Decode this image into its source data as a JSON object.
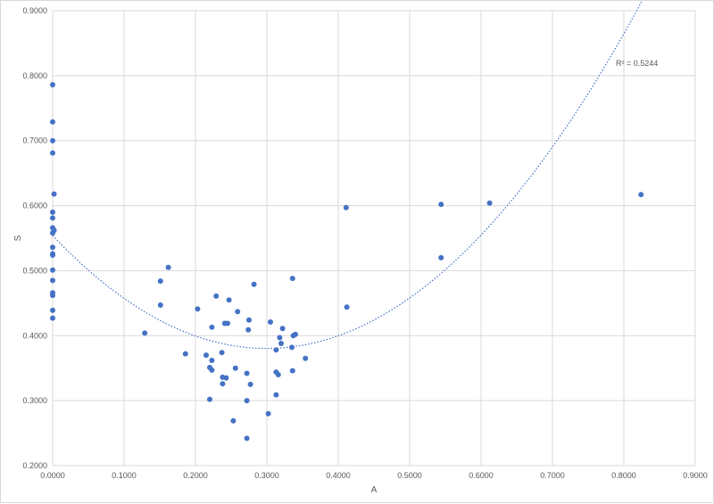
{
  "chart_data": {
    "type": "scatter",
    "xlabel": "A",
    "ylabel": "S",
    "xlim": [
      0,
      0.9
    ],
    "ylim": [
      0.2,
      0.9
    ],
    "grid": true,
    "x_ticks": [
      "0.0000",
      "0.1000",
      "0.2000",
      "0.3000",
      "0.4000",
      "0.5000",
      "0.6000",
      "0.7000",
      "0.8000",
      "0.9000"
    ],
    "y_ticks": [
      "0.2000",
      "0.3000",
      "0.4000",
      "0.5000",
      "0.6000",
      "0.7000",
      "0.8000",
      "0.9000"
    ],
    "x_tick_values": [
      0,
      0.1,
      0.2,
      0.3,
      0.4,
      0.5,
      0.6,
      0.7,
      0.8,
      0.9
    ],
    "y_tick_values": [
      0.2,
      0.3,
      0.4,
      0.5,
      0.6,
      0.7,
      0.8,
      0.9
    ],
    "series_color": "#4472c4",
    "trendline": {
      "type": "polynomial-order-2",
      "style": "dotted",
      "label": "R² = 0.5244",
      "coefficients": [
        0.554,
        -1.159,
        1.934
      ],
      "x_range": [
        0,
        0.85
      ]
    },
    "points": [
      [
        0.0,
        0.786
      ],
      [
        0.0,
        0.729
      ],
      [
        0.0,
        0.7
      ],
      [
        0.0,
        0.681
      ],
      [
        0.002,
        0.618
      ],
      [
        0.0,
        0.59
      ],
      [
        0.0,
        0.581
      ],
      [
        0.0,
        0.566
      ],
      [
        0.002,
        0.562
      ],
      [
        0.0,
        0.558
      ],
      [
        0.0,
        0.536
      ],
      [
        0.0,
        0.526
      ],
      [
        0.0,
        0.524
      ],
      [
        0.0,
        0.501
      ],
      [
        0.0,
        0.485
      ],
      [
        0.0,
        0.466
      ],
      [
        0.0,
        0.462
      ],
      [
        0.0,
        0.439
      ],
      [
        0.0,
        0.427
      ],
      [
        0.129,
        0.404
      ],
      [
        0.151,
        0.484
      ],
      [
        0.151,
        0.447
      ],
      [
        0.162,
        0.505
      ],
      [
        0.186,
        0.372
      ],
      [
        0.203,
        0.441
      ],
      [
        0.215,
        0.37
      ],
      [
        0.22,
        0.351
      ],
      [
        0.22,
        0.302
      ],
      [
        0.223,
        0.413
      ],
      [
        0.223,
        0.347
      ],
      [
        0.223,
        0.362
      ],
      [
        0.229,
        0.461
      ],
      [
        0.237,
        0.374
      ],
      [
        0.238,
        0.336
      ],
      [
        0.238,
        0.326
      ],
      [
        0.241,
        0.419
      ],
      [
        0.243,
        0.335
      ],
      [
        0.245,
        0.419
      ],
      [
        0.247,
        0.455
      ],
      [
        0.253,
        0.269
      ],
      [
        0.256,
        0.35
      ],
      [
        0.259,
        0.437
      ],
      [
        0.272,
        0.342
      ],
      [
        0.272,
        0.3
      ],
      [
        0.272,
        0.242
      ],
      [
        0.274,
        0.409
      ],
      [
        0.275,
        0.424
      ],
      [
        0.277,
        0.325
      ],
      [
        0.282,
        0.479
      ],
      [
        0.302,
        0.28
      ],
      [
        0.305,
        0.421
      ],
      [
        0.313,
        0.378
      ],
      [
        0.313,
        0.344
      ],
      [
        0.313,
        0.309
      ],
      [
        0.316,
        0.34
      ],
      [
        0.318,
        0.397
      ],
      [
        0.32,
        0.388
      ],
      [
        0.322,
        0.411
      ],
      [
        0.335,
        0.382
      ],
      [
        0.336,
        0.488
      ],
      [
        0.336,
        0.346
      ],
      [
        0.337,
        0.4
      ],
      [
        0.34,
        0.402
      ],
      [
        0.354,
        0.365
      ],
      [
        0.411,
        0.597
      ],
      [
        0.412,
        0.444
      ],
      [
        0.544,
        0.602
      ],
      [
        0.544,
        0.52
      ],
      [
        0.612,
        0.604
      ],
      [
        0.824,
        0.617
      ]
    ]
  }
}
